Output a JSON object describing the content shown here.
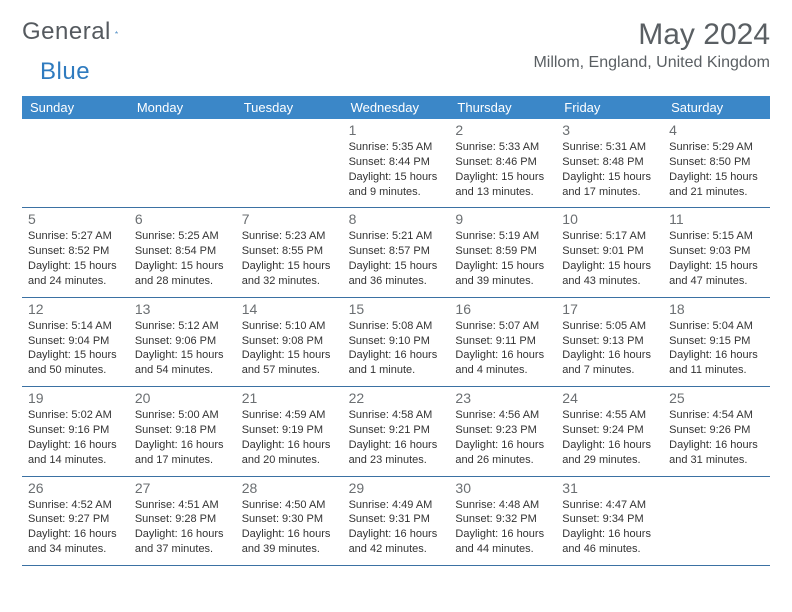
{
  "brand": {
    "part1": "General",
    "part2": "Blue"
  },
  "colors": {
    "headerBg": "#3b87c8",
    "headerText": "#ffffff",
    "ruleColor": "#3b71a3",
    "textMuted": "#5a5f63",
    "dayNum": "#6b6f72",
    "bodyText": "#333333",
    "accent": "#2f7bbf",
    "background": "#ffffff"
  },
  "title": "May 2024",
  "location": "Millom, England, United Kingdom",
  "days": [
    "Sunday",
    "Monday",
    "Tuesday",
    "Wednesday",
    "Thursday",
    "Friday",
    "Saturday"
  ],
  "weeks": [
    [
      null,
      null,
      null,
      {
        "n": "1",
        "sr": "5:35 AM",
        "ss": "8:44 PM",
        "dl1": "Daylight: 15 hours",
        "dl2": "and 9 minutes."
      },
      {
        "n": "2",
        "sr": "5:33 AM",
        "ss": "8:46 PM",
        "dl1": "Daylight: 15 hours",
        "dl2": "and 13 minutes."
      },
      {
        "n": "3",
        "sr": "5:31 AM",
        "ss": "8:48 PM",
        "dl1": "Daylight: 15 hours",
        "dl2": "and 17 minutes."
      },
      {
        "n": "4",
        "sr": "5:29 AM",
        "ss": "8:50 PM",
        "dl1": "Daylight: 15 hours",
        "dl2": "and 21 minutes."
      }
    ],
    [
      {
        "n": "5",
        "sr": "5:27 AM",
        "ss": "8:52 PM",
        "dl1": "Daylight: 15 hours",
        "dl2": "and 24 minutes."
      },
      {
        "n": "6",
        "sr": "5:25 AM",
        "ss": "8:54 PM",
        "dl1": "Daylight: 15 hours",
        "dl2": "and 28 minutes."
      },
      {
        "n": "7",
        "sr": "5:23 AM",
        "ss": "8:55 PM",
        "dl1": "Daylight: 15 hours",
        "dl2": "and 32 minutes."
      },
      {
        "n": "8",
        "sr": "5:21 AM",
        "ss": "8:57 PM",
        "dl1": "Daylight: 15 hours",
        "dl2": "and 36 minutes."
      },
      {
        "n": "9",
        "sr": "5:19 AM",
        "ss": "8:59 PM",
        "dl1": "Daylight: 15 hours",
        "dl2": "and 39 minutes."
      },
      {
        "n": "10",
        "sr": "5:17 AM",
        "ss": "9:01 PM",
        "dl1": "Daylight: 15 hours",
        "dl2": "and 43 minutes."
      },
      {
        "n": "11",
        "sr": "5:15 AM",
        "ss": "9:03 PM",
        "dl1": "Daylight: 15 hours",
        "dl2": "and 47 minutes."
      }
    ],
    [
      {
        "n": "12",
        "sr": "5:14 AM",
        "ss": "9:04 PM",
        "dl1": "Daylight: 15 hours",
        "dl2": "and 50 minutes."
      },
      {
        "n": "13",
        "sr": "5:12 AM",
        "ss": "9:06 PM",
        "dl1": "Daylight: 15 hours",
        "dl2": "and 54 minutes."
      },
      {
        "n": "14",
        "sr": "5:10 AM",
        "ss": "9:08 PM",
        "dl1": "Daylight: 15 hours",
        "dl2": "and 57 minutes."
      },
      {
        "n": "15",
        "sr": "5:08 AM",
        "ss": "9:10 PM",
        "dl1": "Daylight: 16 hours",
        "dl2": "and 1 minute."
      },
      {
        "n": "16",
        "sr": "5:07 AM",
        "ss": "9:11 PM",
        "dl1": "Daylight: 16 hours",
        "dl2": "and 4 minutes."
      },
      {
        "n": "17",
        "sr": "5:05 AM",
        "ss": "9:13 PM",
        "dl1": "Daylight: 16 hours",
        "dl2": "and 7 minutes."
      },
      {
        "n": "18",
        "sr": "5:04 AM",
        "ss": "9:15 PM",
        "dl1": "Daylight: 16 hours",
        "dl2": "and 11 minutes."
      }
    ],
    [
      {
        "n": "19",
        "sr": "5:02 AM",
        "ss": "9:16 PM",
        "dl1": "Daylight: 16 hours",
        "dl2": "and 14 minutes."
      },
      {
        "n": "20",
        "sr": "5:00 AM",
        "ss": "9:18 PM",
        "dl1": "Daylight: 16 hours",
        "dl2": "and 17 minutes."
      },
      {
        "n": "21",
        "sr": "4:59 AM",
        "ss": "9:19 PM",
        "dl1": "Daylight: 16 hours",
        "dl2": "and 20 minutes."
      },
      {
        "n": "22",
        "sr": "4:58 AM",
        "ss": "9:21 PM",
        "dl1": "Daylight: 16 hours",
        "dl2": "and 23 minutes."
      },
      {
        "n": "23",
        "sr": "4:56 AM",
        "ss": "9:23 PM",
        "dl1": "Daylight: 16 hours",
        "dl2": "and 26 minutes."
      },
      {
        "n": "24",
        "sr": "4:55 AM",
        "ss": "9:24 PM",
        "dl1": "Daylight: 16 hours",
        "dl2": "and 29 minutes."
      },
      {
        "n": "25",
        "sr": "4:54 AM",
        "ss": "9:26 PM",
        "dl1": "Daylight: 16 hours",
        "dl2": "and 31 minutes."
      }
    ],
    [
      {
        "n": "26",
        "sr": "4:52 AM",
        "ss": "9:27 PM",
        "dl1": "Daylight: 16 hours",
        "dl2": "and 34 minutes."
      },
      {
        "n": "27",
        "sr": "4:51 AM",
        "ss": "9:28 PM",
        "dl1": "Daylight: 16 hours",
        "dl2": "and 37 minutes."
      },
      {
        "n": "28",
        "sr": "4:50 AM",
        "ss": "9:30 PM",
        "dl1": "Daylight: 16 hours",
        "dl2": "and 39 minutes."
      },
      {
        "n": "29",
        "sr": "4:49 AM",
        "ss": "9:31 PM",
        "dl1": "Daylight: 16 hours",
        "dl2": "and 42 minutes."
      },
      {
        "n": "30",
        "sr": "4:48 AM",
        "ss": "9:32 PM",
        "dl1": "Daylight: 16 hours",
        "dl2": "and 44 minutes."
      },
      {
        "n": "31",
        "sr": "4:47 AM",
        "ss": "9:34 PM",
        "dl1": "Daylight: 16 hours",
        "dl2": "and 46 minutes."
      },
      null
    ]
  ],
  "labels": {
    "sunrise": "Sunrise: ",
    "sunset": "Sunset: "
  }
}
